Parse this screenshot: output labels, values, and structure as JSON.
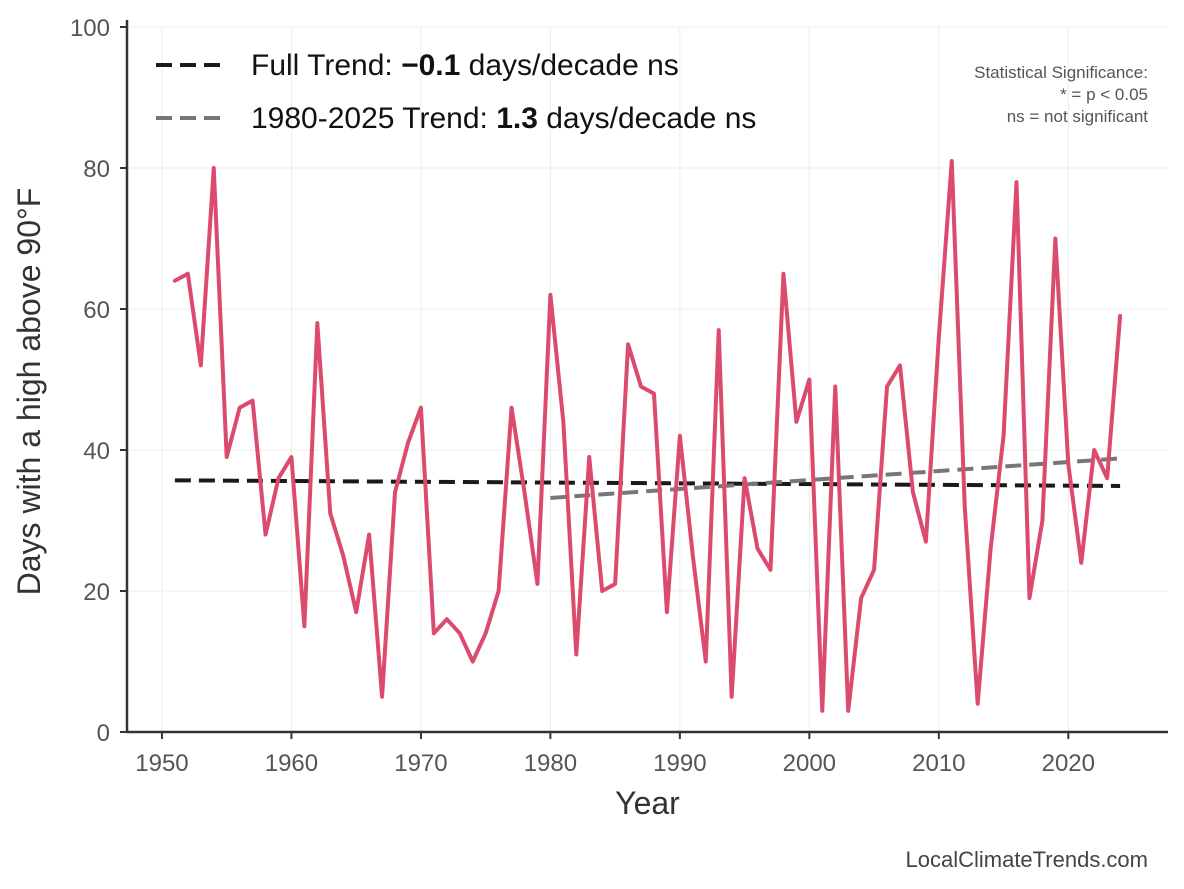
{
  "chart_data": {
    "type": "line",
    "xlabel": "Year",
    "ylabel": "Days with a high above 90°F",
    "xlim": [
      1947.3,
      2027.7
    ],
    "ylim": [
      0,
      100
    ],
    "x_ticks": [
      1950,
      1960,
      1970,
      1980,
      1990,
      2000,
      2010,
      2020
    ],
    "y_ticks": [
      0,
      20,
      40,
      60,
      80,
      100
    ],
    "grid": true,
    "legend_position": "top-left",
    "series": [
      {
        "color": "#dc4a6d",
        "x": [
          1951,
          1952,
          1953,
          1954,
          1955,
          1956,
          1957,
          1958,
          1959,
          1960,
          1961,
          1962,
          1963,
          1964,
          1965,
          1966,
          1967,
          1968,
          1969,
          1970,
          1971,
          1972,
          1973,
          1974,
          1975,
          1976,
          1977,
          1978,
          1979,
          1980,
          1981,
          1982,
          1983,
          1984,
          1985,
          1986,
          1987,
          1988,
          1989,
          1990,
          1991,
          1992,
          1993,
          1994,
          1995,
          1996,
          1997,
          1998,
          1999,
          2000,
          2001,
          2002,
          2003,
          2004,
          2005,
          2006,
          2007,
          2008,
          2009,
          2010,
          2011,
          2012,
          2013,
          2014,
          2015,
          2016,
          2017,
          2018,
          2019,
          2020,
          2021,
          2022,
          2023,
          2024
        ],
        "values": [
          64,
          65,
          52,
          80,
          39,
          46,
          47,
          28,
          36,
          39,
          15,
          58,
          31,
          25,
          17,
          28,
          5,
          34,
          41,
          46,
          14,
          16,
          14,
          10,
          14,
          20,
          46,
          34,
          21,
          62,
          44,
          11,
          39,
          20,
          21,
          55,
          49,
          48,
          17,
          42,
          25,
          10,
          57,
          5,
          36,
          26,
          23,
          65,
          44,
          50,
          3,
          49,
          3,
          19,
          23,
          49,
          52,
          34,
          27,
          56,
          81,
          32,
          4,
          26,
          42,
          78,
          19,
          30,
          70,
          38,
          24,
          40,
          36,
          59
        ]
      }
    ],
    "trends": [
      {
        "label_prefix": "Full Trend: ",
        "label_value": "−0.1",
        "label_suffix": " days/decade ns",
        "color": "#1a1a1a",
        "x": [
          1951,
          2024
        ],
        "y": [
          35.7,
          34.9
        ]
      },
      {
        "label_prefix": "1980-2025 Trend: ",
        "label_value": "1.3",
        "label_suffix": " days/decade ns",
        "color": "#777777",
        "x": [
          1980,
          2024
        ],
        "y": [
          33.2,
          38.8
        ]
      }
    ],
    "significance_note": [
      "Statistical Significance:",
      "* = p < 0.05",
      "ns = not significant"
    ]
  },
  "watermark": "LocalClimateTrends.com"
}
